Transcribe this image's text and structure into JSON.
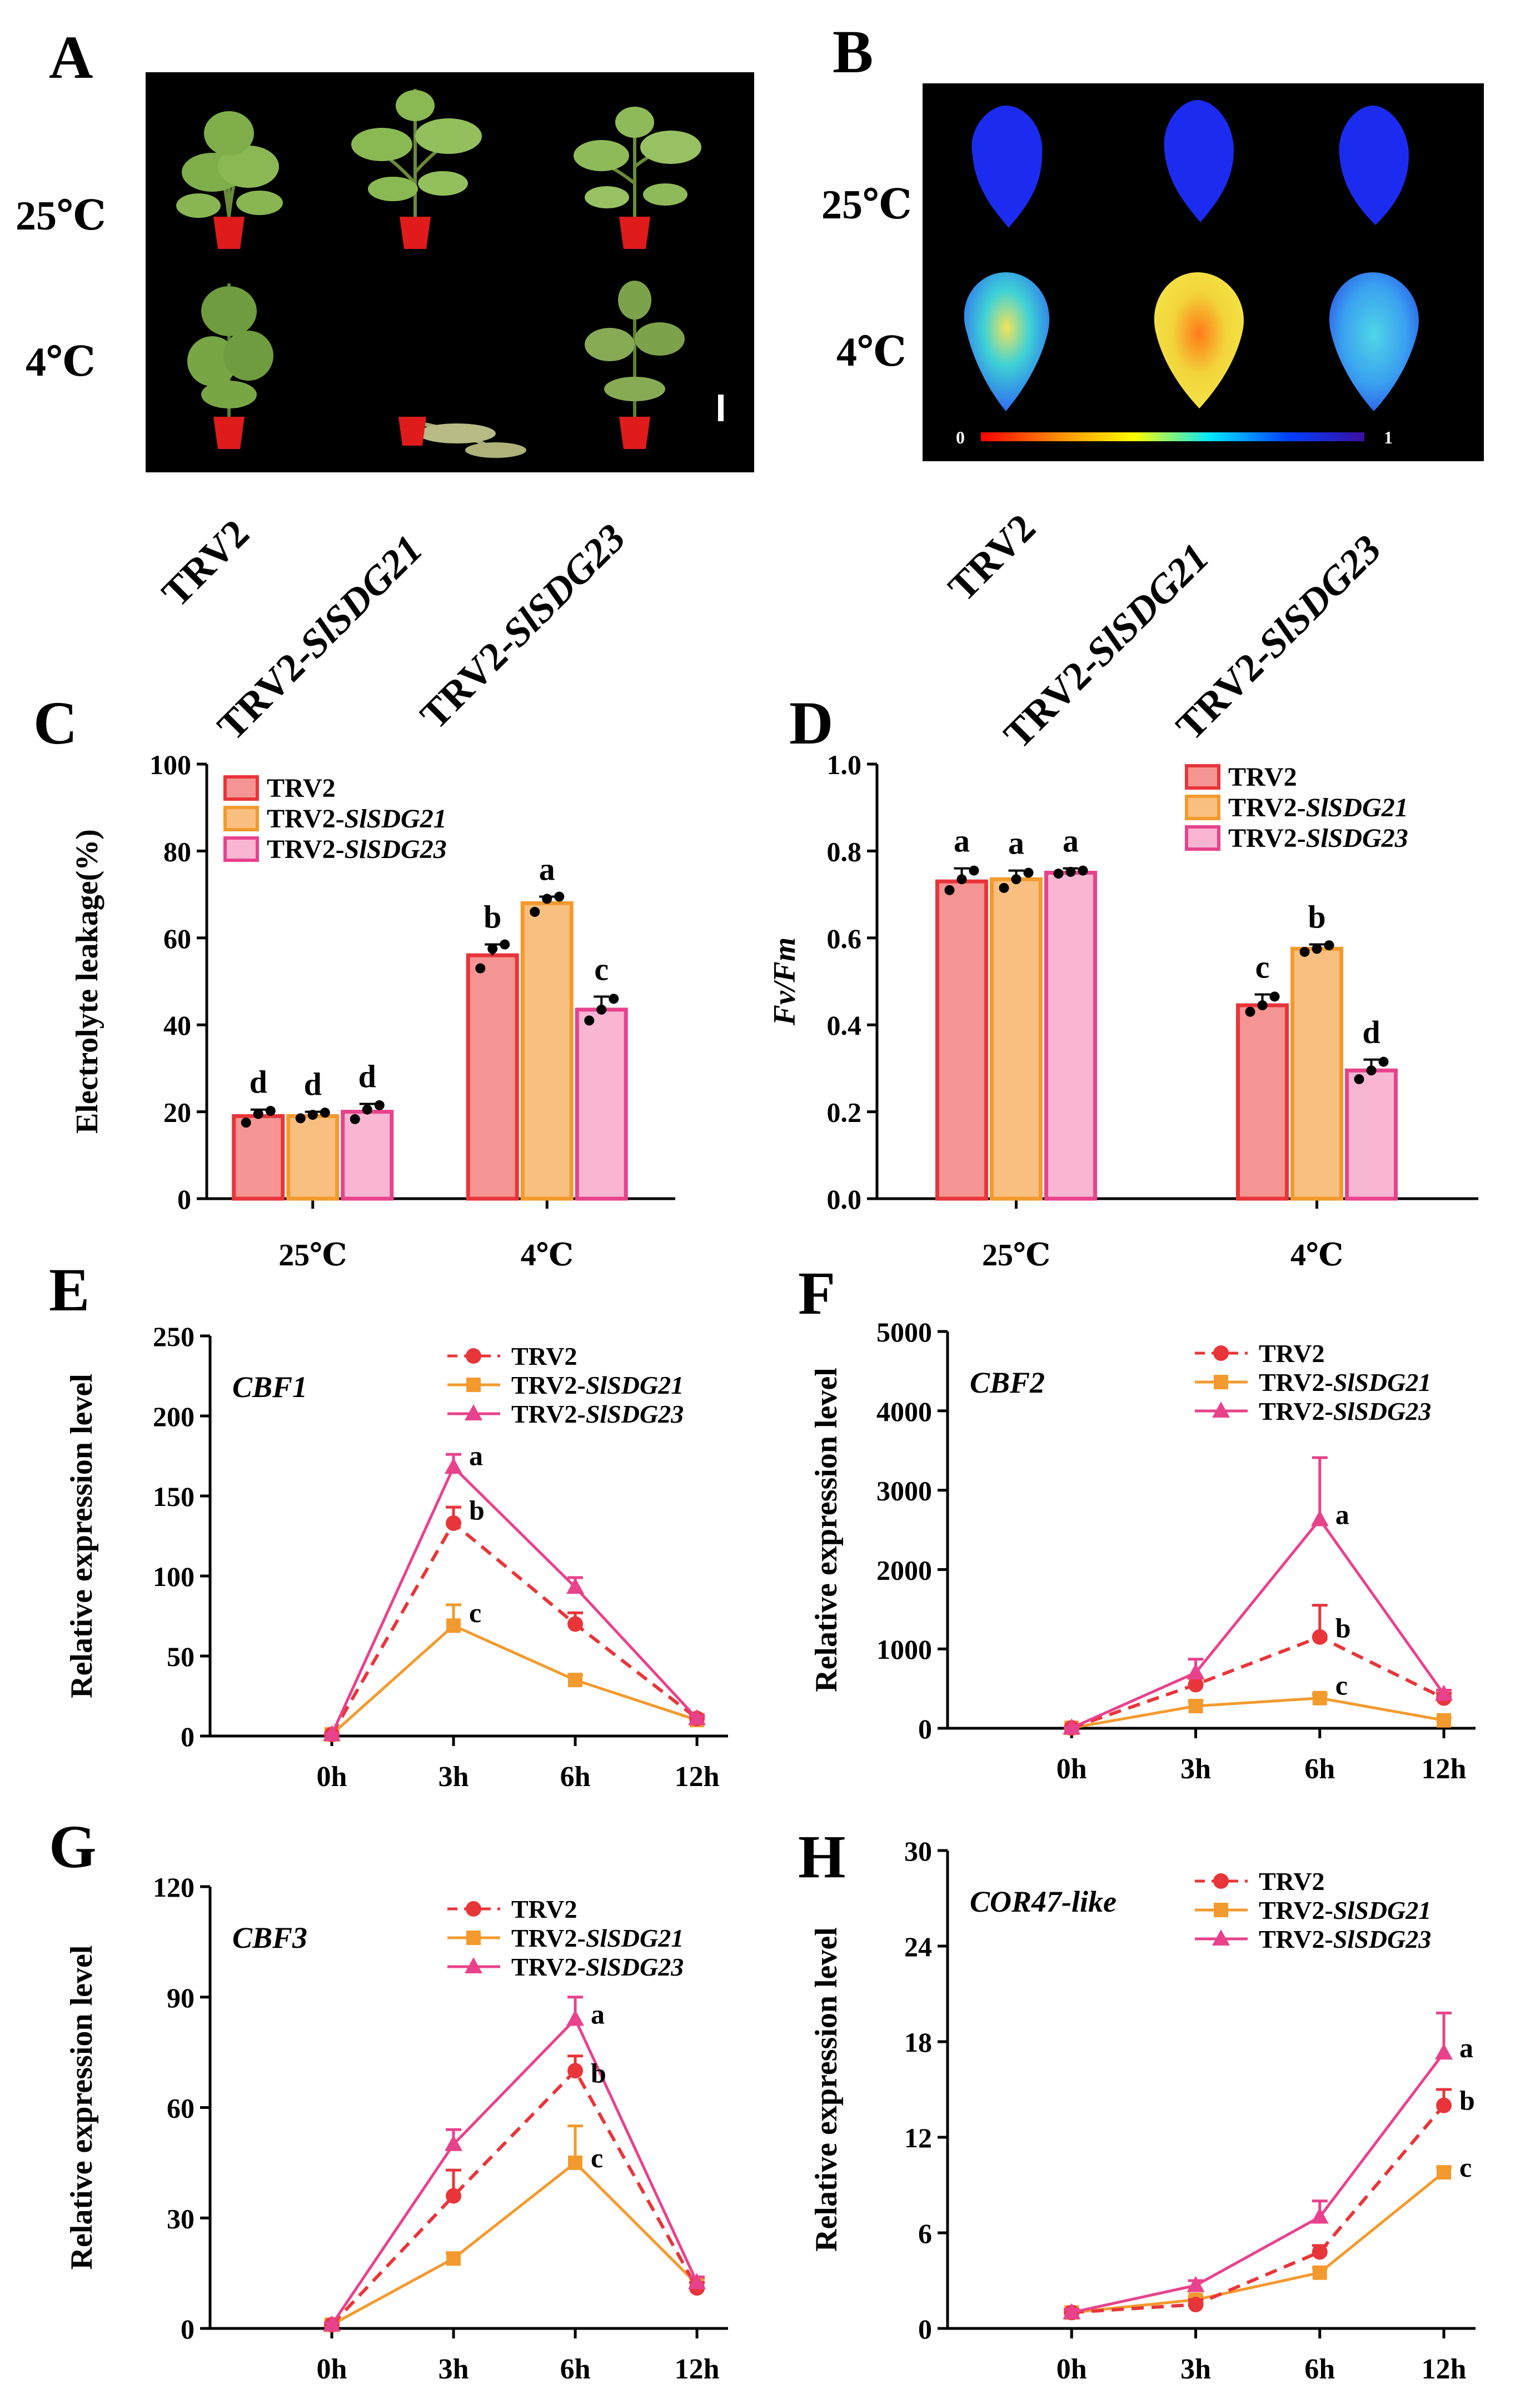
{
  "panels": {
    "A": "A",
    "B": "B",
    "C": "C",
    "D": "D",
    "E": "E",
    "F": "F",
    "G": "G",
    "H": "H"
  },
  "photo_rows": [
    "25℃",
    "4℃"
  ],
  "genotypes": [
    {
      "plain": "TRV2",
      "italic": ""
    },
    {
      "plain": "TRV2-",
      "italic": "SlSDG21"
    },
    {
      "plain": "TRV2-",
      "italic": "SlSDG23"
    }
  ],
  "colorbar": {
    "min": "0",
    "max": "1"
  },
  "colors": {
    "trv2": "#e8353a",
    "sdg21": "#f39a2e",
    "sdg23": "#e8428c",
    "bar_trv2": "#f59593",
    "bar_sdg21": "#f9bf80",
    "bar_sdg23": "#f8b6d3"
  },
  "chart_data": [
    {
      "id": "C",
      "type": "bar",
      "ylabel": "Electrolyte leakage(%)",
      "ylim": [
        0,
        100
      ],
      "yticks": [
        0,
        20,
        40,
        60,
        80,
        100
      ],
      "categories": [
        "25℃",
        "4℃"
      ],
      "series": [
        {
          "name": "TRV2",
          "italic": "",
          "values": [
            19,
            56
          ],
          "errors": [
            1.5,
            2.5
          ],
          "points": [
            [
              17.5,
              19.5,
              20.2
            ],
            [
              53,
              57.5,
              58.5
            ]
          ],
          "letters": [
            "d",
            "b"
          ]
        },
        {
          "name": "TRV2-",
          "italic": "SlSDG21",
          "values": [
            19,
            68
          ],
          "errors": [
            1,
            1.5
          ],
          "points": [
            [
              18.5,
              19.3,
              19.8
            ],
            [
              66,
              69,
              69.5
            ]
          ],
          "letters": [
            "d",
            "a"
          ]
        },
        {
          "name": "TRV2-",
          "italic": "SlSDG23",
          "values": [
            20,
            43.5
          ],
          "errors": [
            1.8,
            3
          ],
          "points": [
            [
              18.3,
              20.5,
              21.5
            ],
            [
              41,
              43.5,
              46
            ]
          ],
          "letters": [
            "d",
            "c"
          ]
        }
      ]
    },
    {
      "id": "D",
      "type": "bar",
      "ylabel": "Fv/Fm",
      "ylabel_italic": true,
      "ylim": [
        0,
        1.0
      ],
      "yticks": [
        0.0,
        0.2,
        0.4,
        0.6,
        0.8,
        1.0
      ],
      "categories": [
        "25℃",
        "4℃"
      ],
      "series": [
        {
          "name": "TRV2",
          "italic": "",
          "values": [
            0.73,
            0.445
          ],
          "errors": [
            0.03,
            0.025
          ],
          "points": [
            [
              0.71,
              0.735,
              0.755
            ],
            [
              0.43,
              0.445,
              0.465
            ]
          ],
          "letters": [
            "a",
            "c"
          ]
        },
        {
          "name": "TRV2-",
          "italic": "SlSDG21",
          "values": [
            0.735,
            0.575
          ],
          "errors": [
            0.02,
            0.01
          ],
          "points": [
            [
              0.715,
              0.735,
              0.75
            ],
            [
              0.568,
              0.575,
              0.583
            ]
          ],
          "letters": [
            "a",
            "b"
          ]
        },
        {
          "name": "TRV2-",
          "italic": "SlSDG23",
          "values": [
            0.75,
            0.295
          ],
          "errors": [
            0.01,
            0.025
          ],
          "points": [
            [
              0.748,
              0.752,
              0.755
            ],
            [
              0.275,
              0.295,
              0.315
            ]
          ],
          "letters": [
            "a",
            "d"
          ]
        }
      ]
    },
    {
      "id": "E",
      "type": "line",
      "gene": "CBF1",
      "ylabel": "Relative expression level",
      "x": [
        "0h",
        "3h",
        "6h",
        "12h"
      ],
      "ylim": [
        0,
        250
      ],
      "yticks": [
        0,
        50,
        100,
        150,
        200,
        250
      ],
      "series": [
        {
          "name": "TRV2",
          "italic": "",
          "values": [
            1,
            133,
            70,
            11
          ],
          "errors": [
            0.5,
            10,
            7,
            2
          ]
        },
        {
          "name": "TRV2-",
          "italic": "SlSDG21",
          "values": [
            1,
            69,
            35,
            10
          ],
          "errors": [
            0.5,
            13,
            3,
            1.5
          ]
        },
        {
          "name": "TRV2-",
          "italic": "SlSDG23",
          "values": [
            1,
            168,
            93,
            11
          ],
          "errors": [
            0.5,
            8,
            6,
            1.5
          ]
        }
      ],
      "letters": [
        {
          "text": "a",
          "x": 1,
          "y": 172
        },
        {
          "text": "b",
          "x": 1,
          "y": 138
        },
        {
          "text": "c",
          "x": 1,
          "y": 74
        }
      ]
    },
    {
      "id": "F",
      "type": "line",
      "gene": "CBF2",
      "ylabel": "Relative expression level",
      "x": [
        "0h",
        "3h",
        "6h",
        "12h"
      ],
      "ylim": [
        0,
        5000
      ],
      "yticks": [
        0,
        1000,
        2000,
        3000,
        4000,
        5000
      ],
      "series": [
        {
          "name": "TRV2",
          "italic": "",
          "values": [
            5,
            550,
            1150,
            380
          ],
          "errors": [
            5,
            80,
            400,
            60
          ]
        },
        {
          "name": "TRV2-",
          "italic": "SlSDG21",
          "values": [
            5,
            280,
            380,
            100
          ],
          "errors": [
            5,
            60,
            50,
            30
          ]
        },
        {
          "name": "TRV2-",
          "italic": "SlSDG23",
          "values": [
            5,
            700,
            2630,
            430
          ],
          "errors": [
            5,
            170,
            780,
            50
          ]
        }
      ],
      "letters": [
        {
          "text": "a",
          "x": 2,
          "y": 2630
        },
        {
          "text": "b",
          "x": 2,
          "y": 1200
        },
        {
          "text": "c",
          "x": 2,
          "y": 480
        }
      ]
    },
    {
      "id": "G",
      "type": "line",
      "gene": "CBF3",
      "ylabel": "Relative expression level",
      "x": [
        "0h",
        "3h",
        "6h",
        "12h"
      ],
      "ylim": [
        0,
        120
      ],
      "yticks": [
        0,
        30,
        60,
        90,
        120
      ],
      "series": [
        {
          "name": "TRV2",
          "italic": "",
          "values": [
            1,
            36,
            70,
            11
          ],
          "errors": [
            0.5,
            7,
            4,
            1.5
          ]
        },
        {
          "name": "TRV2-",
          "italic": "SlSDG21",
          "values": [
            1,
            19,
            45,
            12
          ],
          "errors": [
            0.5,
            1.5,
            10,
            1.5
          ]
        },
        {
          "name": "TRV2-",
          "italic": "SlSDG23",
          "values": [
            1,
            50,
            84,
            12.5
          ],
          "errors": [
            0.5,
            4,
            6,
            1.5
          ]
        }
      ],
      "letters": [
        {
          "text": "a",
          "x": 2,
          "y": 84
        },
        {
          "text": "b",
          "x": 2,
          "y": 68
        },
        {
          "text": "c",
          "x": 2,
          "y": 45
        }
      ]
    },
    {
      "id": "H",
      "type": "line",
      "gene": "COR47-like",
      "ylabel": "Relative expression level",
      "x": [
        "0h",
        "3h",
        "6h",
        "12h"
      ],
      "ylim": [
        0,
        30
      ],
      "yticks": [
        0,
        6,
        12,
        18,
        24,
        30
      ],
      "series": [
        {
          "name": "TRV2",
          "italic": "",
          "values": [
            1,
            1.5,
            4.8,
            14
          ],
          "errors": [
            0.2,
            0.3,
            0.4,
            1
          ]
        },
        {
          "name": "TRV2-",
          "italic": "SlSDG21",
          "values": [
            1,
            1.8,
            3.5,
            9.8
          ],
          "errors": [
            0.2,
            0.2,
            0.3,
            0.3
          ]
        },
        {
          "name": "TRV2-",
          "italic": "SlSDG23",
          "values": [
            1,
            2.7,
            7,
            17.3
          ],
          "errors": [
            0.2,
            0.3,
            1,
            2.5
          ]
        }
      ],
      "letters": [
        {
          "text": "a",
          "x": 3,
          "y": 17.3
        },
        {
          "text": "b",
          "x": 3,
          "y": 14
        },
        {
          "text": "c",
          "x": 3,
          "y": 9.8
        }
      ]
    }
  ]
}
